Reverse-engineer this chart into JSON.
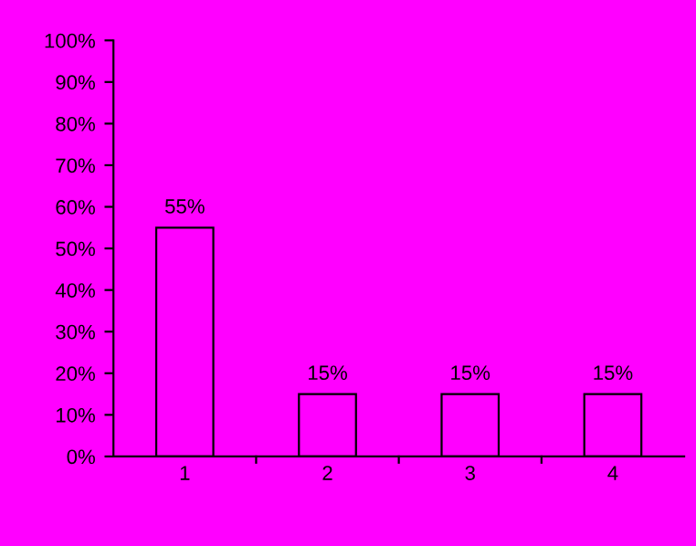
{
  "chart_data": {
    "type": "bar",
    "categories": [
      "1",
      "2",
      "3",
      "4"
    ],
    "values": [
      55,
      15,
      15,
      15
    ],
    "value_labels": [
      "55%",
      "15%",
      "15%",
      "15%"
    ],
    "color": "#ff00ff",
    "ylim": [
      0,
      100
    ],
    "yticks": [
      {
        "value": 0,
        "label": "0%"
      },
      {
        "value": 10,
        "label": "10%"
      },
      {
        "value": 20,
        "label": "20%"
      },
      {
        "value": 30,
        "label": "30%"
      },
      {
        "value": 40,
        "label": "40%"
      },
      {
        "value": 50,
        "label": "50%"
      },
      {
        "value": 60,
        "label": "60%"
      },
      {
        "value": 70,
        "label": "70%"
      },
      {
        "value": 80,
        "label": "80%"
      },
      {
        "value": 90,
        "label": "90%"
      },
      {
        "value": 100,
        "label": "100%"
      }
    ],
    "grid": false,
    "legend": false
  }
}
